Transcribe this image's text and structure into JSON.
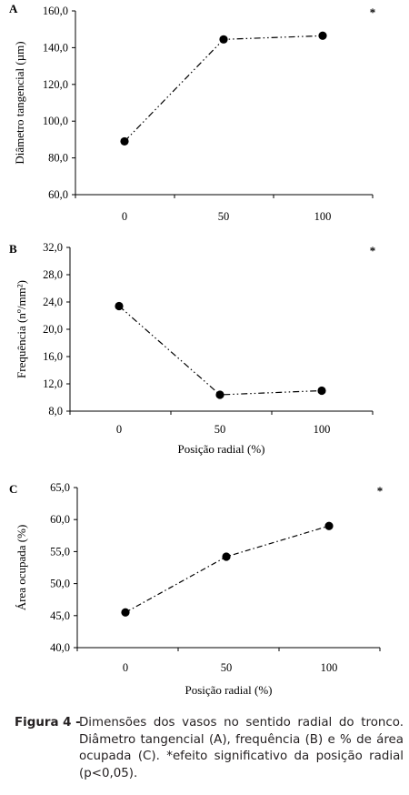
{
  "chart_data": [
    {
      "type": "line",
      "panel_label": "A",
      "significance_marker": "*",
      "categories": [
        "0",
        "50",
        "100"
      ],
      "values": [
        89.0,
        144.5,
        146.5
      ],
      "xlabel": "",
      "ylabel": "Diâmetro tangencial (µm)",
      "ylim": [
        60,
        160
      ],
      "yticks": [
        "60,0",
        "80,0",
        "100,0",
        "120,0",
        "140,0",
        "160,0"
      ],
      "grid": false,
      "line_style": "dash-dot-dot",
      "marker_color": "#000000"
    },
    {
      "type": "line",
      "panel_label": "B",
      "significance_marker": "*",
      "categories": [
        "0",
        "50",
        "100"
      ],
      "values": [
        23.4,
        10.4,
        11.0
      ],
      "xlabel": "Posição radial (%)",
      "ylabel": "Frequência (nº/mm²)",
      "ylim": [
        8,
        32
      ],
      "yticks": [
        "8,0",
        "12,0",
        "16,0",
        "20,0",
        "24,0",
        "28,0",
        "32,0"
      ],
      "grid": false,
      "line_style": "dash-dot-dot",
      "marker_color": "#000000"
    },
    {
      "type": "line",
      "panel_label": "C",
      "significance_marker": "*",
      "categories": [
        "0",
        "50",
        "100"
      ],
      "values": [
        45.5,
        54.2,
        59.0
      ],
      "xlabel": "Posição radial (%)",
      "ylabel": "Área ocupada (%)",
      "ylim": [
        40,
        65
      ],
      "yticks": [
        "40,0",
        "45,0",
        "50,0",
        "55,0",
        "60,0",
        "65,0"
      ],
      "grid": false,
      "line_style": "dash-dot",
      "marker_color": "#000000"
    }
  ],
  "caption": {
    "label": "Figura 4 -",
    "text": "Dimensões dos vasos no sentido radial do tronco. Diâmetro tangencial (A), frequência (B) e % de área ocupada (C). *efeito significativo da posição radial (p<0,05)."
  }
}
